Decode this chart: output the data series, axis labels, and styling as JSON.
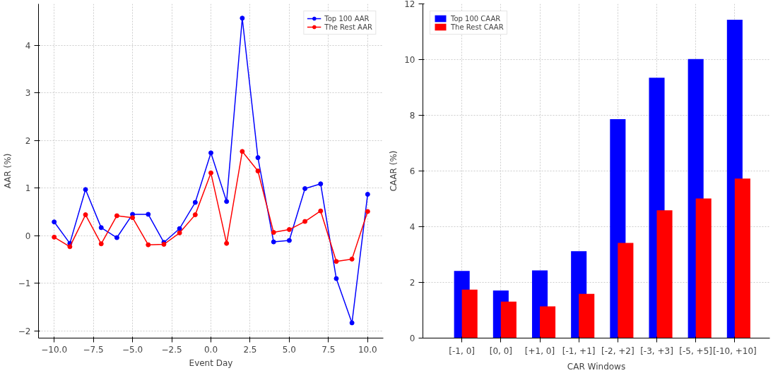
{
  "chart_data": [
    {
      "type": "line",
      "xlabel": "Event Day",
      "ylabel": "AAR (%)",
      "x": [
        -10,
        -9,
        -8,
        -7,
        -6,
        -5,
        -4,
        -3,
        -2,
        -1,
        0,
        1,
        2,
        3,
        4,
        5,
        6,
        7,
        8,
        9,
        10
      ],
      "series": [
        {
          "name": "Top 100 AAR",
          "color": "#0000ff",
          "values": [
            0.29,
            -0.16,
            0.97,
            0.17,
            -0.04,
            0.45,
            0.45,
            -0.14,
            0.15,
            0.7,
            1.74,
            0.72,
            4.57,
            1.64,
            -0.13,
            -0.1,
            0.99,
            1.09,
            -0.9,
            -1.83,
            0.87
          ]
        },
        {
          "name": "The Rest AAR",
          "color": "#ff0000",
          "values": [
            -0.03,
            -0.23,
            0.44,
            -0.17,
            0.42,
            0.38,
            -0.19,
            -0.18,
            0.06,
            0.44,
            1.32,
            -0.16,
            1.77,
            1.36,
            0.07,
            0.13,
            0.3,
            0.52,
            -0.54,
            -0.49,
            0.51
          ]
        }
      ],
      "xlim": [
        -11,
        11
      ],
      "xticks": [
        {
          "value": -10,
          "label": "−10.0"
        },
        {
          "value": -7.5,
          "label": "−7.5"
        },
        {
          "value": -5,
          "label": "−5.0"
        },
        {
          "value": -2.5,
          "label": "−2.5"
        },
        {
          "value": 0,
          "label": "0.0"
        },
        {
          "value": 2.5,
          "label": "2.5"
        },
        {
          "value": 5,
          "label": "5.0"
        },
        {
          "value": 7.5,
          "label": "7.5"
        },
        {
          "value": 10,
          "label": "10.0"
        }
      ],
      "ylim": [
        -2.15,
        4.87
      ],
      "yticks": [
        {
          "value": -2,
          "label": "−2"
        },
        {
          "value": -1,
          "label": "−1"
        },
        0,
        1,
        2,
        3,
        4
      ],
      "grid": true,
      "legend": "top right",
      "marker": "circle",
      "line_style": "solid"
    },
    {
      "type": "bar",
      "xlabel": "CAR Windows",
      "ylabel": "CAAR (%)",
      "categories": [
        "[-1, 0]",
        "[0, 0]",
        "[+1, 0]",
        "[-1, +1]",
        "[-2, +2]",
        "[-3, +3]",
        "[-5, +5]",
        "[-10, +10]"
      ],
      "series": [
        {
          "name": "Top 100 CAAR",
          "color": "#0000ff",
          "values": [
            2.41,
            1.71,
            2.43,
            3.12,
            7.86,
            9.35,
            10.02,
            11.43
          ]
        },
        {
          "name": "The Rest CAAR",
          "color": "#ff0000",
          "values": [
            1.74,
            1.31,
            1.14,
            1.59,
            3.42,
            4.59,
            5.01,
            5.73
          ]
        }
      ],
      "ylim": [
        0,
        12
      ],
      "yticks": [
        0,
        2,
        4,
        6,
        8,
        10,
        12
      ],
      "grid": true,
      "legend": "top left"
    }
  ]
}
